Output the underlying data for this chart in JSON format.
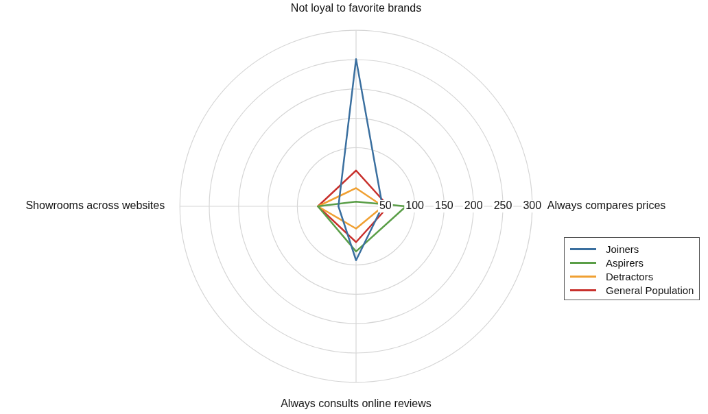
{
  "chart_data": {
    "type": "radar",
    "categories": [
      "Not loyal to favorite brands",
      "Always compares prices",
      "Always consults online reviews",
      "Showrooms across websites"
    ],
    "series": [
      {
        "name": "Joiners",
        "color": "#3a6f9f",
        "values": [
          251,
          45,
          92,
          30
        ]
      },
      {
        "name": "Aspirers",
        "color": "#5a9e47",
        "values": [
          8,
          85,
          77,
          65
        ]
      },
      {
        "name": "Detractors",
        "color": "#f0a032",
        "values": [
          31,
          46,
          38,
          65
        ]
      },
      {
        "name": "General Population",
        "color": "#c8302c",
        "values": [
          61,
          55,
          61,
          65
        ]
      }
    ],
    "ylim": [
      0,
      300
    ],
    "yticks": [
      50,
      100,
      150,
      200,
      250,
      300
    ],
    "grid": true,
    "legend": "right",
    "marker": "none"
  }
}
